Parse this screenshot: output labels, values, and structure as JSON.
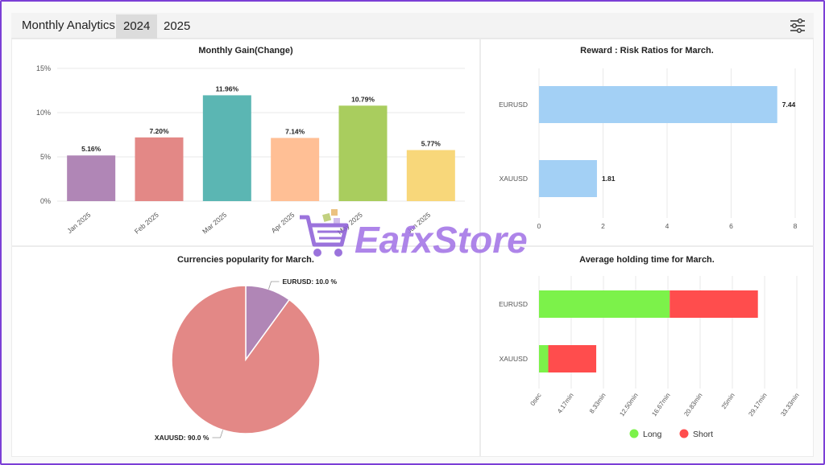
{
  "header": {
    "title": "Monthly Analytics",
    "tabs": [
      {
        "label": "2024",
        "active": true
      },
      {
        "label": "2025",
        "active": false
      }
    ],
    "filter_icon": "sliders-icon"
  },
  "watermark": {
    "text": "EafxStore",
    "icon": "shopping-cart-icon"
  },
  "colors": {
    "grid": "#e9e9e9",
    "axis_text": "#555555",
    "long": "#7cf24a",
    "short": "#ff4d4d",
    "blue_bar": "#a3d0f5"
  },
  "chart_data": [
    {
      "id": "monthly-gain",
      "type": "bar",
      "title": "Monthly Gain(Change)",
      "categories": [
        "Jan 2025",
        "Feb 2025",
        "Mar 2025",
        "Apr 2025",
        "May 2025",
        "Jun 2025"
      ],
      "values": [
        5.16,
        7.2,
        11.96,
        7.14,
        10.79,
        5.77
      ],
      "data_labels": [
        "5.16%",
        "7.20%",
        "11.96%",
        "7.14%",
        "10.79%",
        "5.77%"
      ],
      "colors": [
        "#b086b6",
        "#e38886",
        "#5bb6b3",
        "#ffbf95",
        "#a9cd5e",
        "#f8d77a"
      ],
      "ylim": [
        0,
        15
      ],
      "yticks": [
        "0%",
        "5%",
        "10%",
        "15%"
      ],
      "ytick_values": [
        0,
        5,
        10,
        15
      ],
      "grid": true
    },
    {
      "id": "reward-risk",
      "type": "bar",
      "orientation": "horizontal",
      "title": "Reward : Risk Ratios for March.",
      "categories": [
        "EURUSD",
        "XAUUSD"
      ],
      "values": [
        7.44,
        1.81
      ],
      "data_labels": [
        "7.44",
        "1.81"
      ],
      "xlim": [
        0,
        8
      ],
      "xticks": [
        "0",
        "2",
        "4",
        "6",
        "8"
      ],
      "xtick_values": [
        0,
        2,
        4,
        6,
        8
      ],
      "grid": true
    },
    {
      "id": "currencies-popularity",
      "type": "pie",
      "title": "Currencies popularity for March.",
      "labels": [
        "EURUSD",
        "XAUUSD"
      ],
      "values": [
        10.0,
        90.0
      ],
      "data_labels": [
        "EURUSD: 10.0 %",
        "XAUUSD: 90.0 %"
      ],
      "colors": [
        "#b086b6",
        "#e38886"
      ]
    },
    {
      "id": "avg-holding",
      "type": "bar",
      "orientation": "horizontal",
      "stacked": true,
      "title": "Average holding time for March.",
      "categories": [
        "EURUSD",
        "XAUUSD"
      ],
      "series": [
        {
          "name": "Long",
          "values": [
            16.9,
            1.2
          ]
        },
        {
          "name": "Short",
          "values": [
            11.4,
            6.2
          ]
        }
      ],
      "xlim": [
        0,
        33.33
      ],
      "xticks": [
        "0sec",
        "4.17min",
        "8.33min",
        "12.50min",
        "16.67min",
        "20.83min",
        "25min",
        "29.17min",
        "33.33min"
      ],
      "xtick_values": [
        0,
        4.17,
        8.33,
        12.5,
        16.67,
        20.83,
        25,
        29.17,
        33.33
      ],
      "legend": "bottom",
      "grid": true
    }
  ]
}
